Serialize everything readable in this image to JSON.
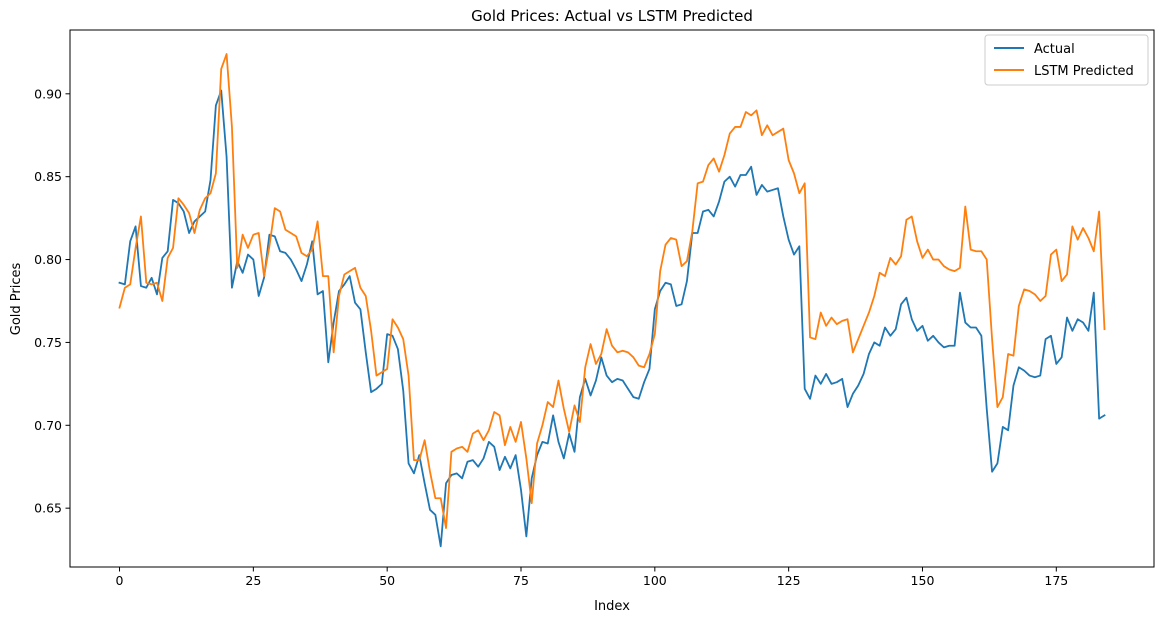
{
  "chart_data": {
    "type": "line",
    "title": "Gold Prices: Actual vs LSTM Predicted",
    "xlabel": "Index",
    "ylabel": "Gold Prices",
    "xlim": [
      -9.25,
      193.25
    ],
    "ylim": [
      0.6145,
      0.9385
    ],
    "xticks": [
      0,
      25,
      50,
      75,
      100,
      125,
      150,
      175
    ],
    "yticks": [
      0.65,
      0.7,
      0.75,
      0.8,
      0.85,
      0.9
    ],
    "ytick_labels": [
      "0.65",
      "0.70",
      "0.75",
      "0.80",
      "0.85",
      "0.90"
    ],
    "grid": false,
    "legend_position": "upper right",
    "series": [
      {
        "name": "Actual",
        "color": "#1f77b4",
        "values": [
          0.786,
          0.785,
          0.811,
          0.82,
          0.784,
          0.783,
          0.789,
          0.779,
          0.801,
          0.805,
          0.836,
          0.834,
          0.829,
          0.816,
          0.823,
          0.826,
          0.829,
          0.848,
          0.893,
          0.902,
          0.862,
          0.783,
          0.799,
          0.792,
          0.803,
          0.8,
          0.778,
          0.789,
          0.815,
          0.814,
          0.805,
          0.804,
          0.8,
          0.794,
          0.787,
          0.797,
          0.811,
          0.779,
          0.781,
          0.738,
          0.762,
          0.781,
          0.785,
          0.79,
          0.774,
          0.77,
          0.744,
          0.72,
          0.722,
          0.725,
          0.755,
          0.754,
          0.746,
          0.721,
          0.677,
          0.671,
          0.682,
          0.665,
          0.649,
          0.646,
          0.627,
          0.665,
          0.67,
          0.671,
          0.668,
          0.678,
          0.679,
          0.675,
          0.68,
          0.69,
          0.687,
          0.673,
          0.681,
          0.674,
          0.682,
          0.661,
          0.633,
          0.668,
          0.682,
          0.69,
          0.689,
          0.706,
          0.69,
          0.68,
          0.695,
          0.684,
          0.717,
          0.728,
          0.718,
          0.727,
          0.741,
          0.73,
          0.726,
          0.728,
          0.727,
          0.722,
          0.717,
          0.716,
          0.726,
          0.734,
          0.77,
          0.781,
          0.786,
          0.785,
          0.772,
          0.773,
          0.787,
          0.816,
          0.816,
          0.829,
          0.83,
          0.826,
          0.835,
          0.847,
          0.85,
          0.844,
          0.851,
          0.851,
          0.856,
          0.839,
          0.845,
          0.841,
          0.842,
          0.843,
          0.826,
          0.812,
          0.803,
          0.808,
          0.722,
          0.716,
          0.73,
          0.725,
          0.731,
          0.725,
          0.726,
          0.728,
          0.711,
          0.719,
          0.724,
          0.731,
          0.743,
          0.75,
          0.748,
          0.759,
          0.754,
          0.758,
          0.773,
          0.777,
          0.764,
          0.757,
          0.76,
          0.751,
          0.754,
          0.75,
          0.747,
          0.748,
          0.748,
          0.78,
          0.762,
          0.759,
          0.759,
          0.754,
          0.71,
          0.672,
          0.677,
          0.699,
          0.697,
          0.724,
          0.735,
          0.733,
          0.73,
          0.729,
          0.73,
          0.752,
          0.754,
          0.737,
          0.741,
          0.765,
          0.757,
          0.764,
          0.762,
          0.757,
          0.78,
          0.704,
          0.706
        ]
      },
      {
        "name": "LSTM Predicted",
        "color": "#ff7f0e",
        "values": [
          0.771,
          0.783,
          0.785,
          0.807,
          0.826,
          0.786,
          0.785,
          0.786,
          0.775,
          0.801,
          0.807,
          0.837,
          0.833,
          0.828,
          0.816,
          0.83,
          0.837,
          0.84,
          0.852,
          0.915,
          0.924,
          0.88,
          0.795,
          0.815,
          0.807,
          0.815,
          0.816,
          0.79,
          0.808,
          0.831,
          0.829,
          0.818,
          0.816,
          0.814,
          0.804,
          0.802,
          0.806,
          0.823,
          0.79,
          0.79,
          0.744,
          0.778,
          0.791,
          0.793,
          0.795,
          0.783,
          0.778,
          0.757,
          0.73,
          0.732,
          0.734,
          0.764,
          0.759,
          0.752,
          0.73,
          0.679,
          0.679,
          0.691,
          0.672,
          0.656,
          0.656,
          0.638,
          0.684,
          0.686,
          0.687,
          0.684,
          0.695,
          0.697,
          0.691,
          0.697,
          0.708,
          0.706,
          0.688,
          0.699,
          0.69,
          0.702,
          0.68,
          0.653,
          0.689,
          0.7,
          0.714,
          0.711,
          0.727,
          0.71,
          0.696,
          0.712,
          0.702,
          0.735,
          0.749,
          0.737,
          0.743,
          0.758,
          0.748,
          0.744,
          0.745,
          0.744,
          0.741,
          0.736,
          0.735,
          0.743,
          0.755,
          0.793,
          0.809,
          0.813,
          0.812,
          0.796,
          0.799,
          0.817,
          0.846,
          0.847,
          0.857,
          0.861,
          0.853,
          0.863,
          0.876,
          0.88,
          0.88,
          0.889,
          0.887,
          0.89,
          0.875,
          0.881,
          0.875,
          0.877,
          0.879,
          0.86,
          0.852,
          0.84,
          0.846,
          0.753,
          0.752,
          0.768,
          0.76,
          0.765,
          0.761,
          0.763,
          0.764,
          0.744,
          0.752,
          0.76,
          0.768,
          0.778,
          0.792,
          0.79,
          0.801,
          0.797,
          0.802,
          0.824,
          0.826,
          0.811,
          0.801,
          0.806,
          0.8,
          0.8,
          0.796,
          0.794,
          0.793,
          0.795,
          0.832,
          0.806,
          0.805,
          0.805,
          0.8,
          0.752,
          0.711,
          0.717,
          0.743,
          0.742,
          0.772,
          0.782,
          0.781,
          0.779,
          0.775,
          0.778,
          0.803,
          0.806,
          0.787,
          0.791,
          0.82,
          0.812,
          0.819,
          0.813,
          0.805,
          0.829,
          0.758
        ]
      }
    ]
  }
}
